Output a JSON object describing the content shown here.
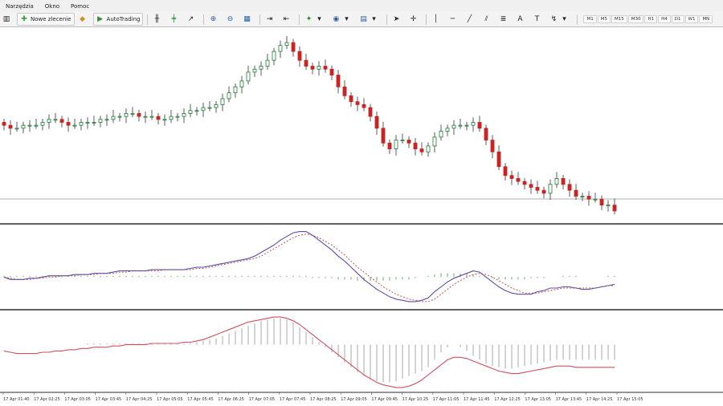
{
  "menu": {
    "items": [
      "Narzędzia",
      "Okno",
      "Pomoc"
    ]
  },
  "toolbar": {
    "new_order_label": "Nowe zlecenie",
    "autotrading_label": "AutoTrading",
    "timeframes": [
      "M1",
      "M5",
      "M15",
      "M30",
      "H1",
      "H4",
      "D1",
      "W1",
      "MN"
    ],
    "icons": [
      "bar-chart-icon",
      "candlestick-icon",
      "line-chart-icon",
      "zoom-in-icon",
      "zoom-out-icon",
      "tile-windows-icon",
      "autoscroll-icon",
      "chart-shift-icon",
      "indicators-icon",
      "periods-icon",
      "templates-icon",
      "cursor-icon",
      "crosshair-icon",
      "vertical-line-icon",
      "horizontal-line-icon",
      "trendline-icon",
      "channel-icon",
      "fibonacci-icon",
      "text-icon",
      "label-icon",
      "arrows-icon"
    ]
  },
  "chart_data": {
    "type": "candlestick",
    "time_labels": [
      "17 Apr 01:40",
      "17 Apr 02:25",
      "17 Apr 03:05",
      "17 Apr 03:45",
      "17 Apr 04:25",
      "17 Apr 05:05",
      "17 Apr 05:45",
      "17 Apr 06:25",
      "17 Apr 07:05",
      "17 Apr 07:45",
      "17 Apr 08:25",
      "17 Apr 09:05",
      "17 Apr 09:45",
      "17 Apr 10:25",
      "17 Apr 11:05",
      "17 Apr 11:45",
      "17 Apr 12:25",
      "17 Apr 13:05",
      "17 Apr 13:45",
      "17 Apr 14:25",
      "17 Apr 15:05"
    ],
    "close": [
      57,
      56,
      56,
      57,
      57,
      57,
      58,
      59,
      59,
      58,
      57,
      57,
      58,
      58,
      58,
      59,
      59,
      60,
      60,
      61,
      61,
      60,
      60,
      60,
      59,
      59,
      60,
      60,
      61,
      62,
      62,
      63,
      63,
      64,
      66,
      68,
      70,
      72,
      75,
      76,
      77,
      79,
      82,
      84,
      85,
      82,
      79,
      77,
      76,
      77,
      76,
      74,
      70,
      67,
      65,
      64,
      63,
      60,
      56,
      51,
      49,
      52,
      52,
      51,
      49,
      48,
      50,
      53,
      55,
      56,
      57,
      57,
      57,
      58,
      56,
      52,
      48,
      43,
      40,
      39,
      38,
      37,
      36,
      35,
      34,
      37,
      39,
      37,
      35,
      33,
      33,
      32,
      32,
      30,
      30,
      28
    ],
    "bull_color": "#1e7a36",
    "bear_color": "#cc2222",
    "macd_line": [
      0,
      -2,
      -2,
      -2,
      -1,
      -1,
      0,
      1,
      1,
      1,
      1,
      2,
      2,
      2,
      3,
      3,
      3,
      4,
      5,
      5,
      5,
      5,
      5,
      6,
      6,
      6,
      6,
      6,
      6,
      7,
      8,
      8,
      9,
      10,
      11,
      12,
      13,
      14,
      15,
      17,
      20,
      23,
      26,
      30,
      33,
      36,
      37,
      37,
      34,
      30,
      26,
      22,
      17,
      13,
      8,
      3,
      -2,
      -6,
      -10,
      -13,
      -16,
      -18,
      -19,
      -20,
      -20,
      -19,
      -17,
      -12,
      -8,
      -4,
      -1,
      1,
      3,
      5,
      4,
      0,
      -4,
      -8,
      -11,
      -13,
      -14,
      -14,
      -14,
      -12,
      -11,
      -9,
      -9,
      -8,
      -8,
      -9,
      -10,
      -10,
      -9,
      -8,
      -7,
      -6
    ],
    "signal_line": [
      0,
      -1,
      -2,
      -2,
      -2,
      -1,
      -1,
      0,
      0,
      1,
      1,
      1,
      2,
      2,
      2,
      3,
      3,
      3,
      4,
      4,
      5,
      5,
      5,
      5,
      5,
      6,
      6,
      6,
      6,
      6,
      7,
      7,
      8,
      9,
      10,
      11,
      12,
      13,
      14,
      15,
      17,
      20,
      23,
      26,
      29,
      32,
      34,
      35,
      34,
      32,
      29,
      26,
      22,
      18,
      13,
      8,
      4,
      0,
      -4,
      -8,
      -11,
      -14,
      -16,
      -18,
      -19,
      -20,
      -20,
      -18,
      -14,
      -10,
      -6,
      -3,
      0,
      2,
      3,
      2,
      0,
      -3,
      -6,
      -9,
      -11,
      -13,
      -13,
      -13,
      -12,
      -11,
      -10,
      -9,
      -9,
      -9,
      -9,
      -9,
      -9,
      -8,
      -7,
      -7
    ],
    "macd_hist": [
      1,
      1,
      1,
      1,
      1,
      1,
      1,
      1,
      1,
      1,
      1,
      1,
      1,
      1,
      1,
      1,
      1,
      1,
      1,
      1,
      1,
      1,
      1,
      1,
      1,
      1,
      1,
      1,
      1,
      1,
      1,
      1,
      1,
      1,
      1,
      1,
      1,
      1,
      1,
      1,
      1,
      1,
      1,
      1,
      1,
      1,
      1,
      1,
      -1,
      -1,
      -1,
      -1,
      -2,
      -2,
      -2,
      -3,
      -3,
      -3,
      -3,
      -3,
      -3,
      -2,
      -2,
      -2,
      -1,
      0,
      1,
      2,
      3,
      3,
      3,
      3,
      3,
      2,
      1,
      0,
      -1,
      -2,
      -2,
      -2,
      -2,
      -2,
      -1,
      -1,
      -1,
      0,
      0,
      1,
      1,
      1,
      0,
      0,
      0,
      0,
      1,
      1
    ],
    "osc_hist": [
      0,
      0,
      0,
      0,
      0,
      0,
      0,
      0,
      0,
      0,
      0,
      0,
      0,
      1,
      1,
      1,
      1,
      1,
      1,
      1,
      1,
      1,
      1,
      1,
      1,
      1,
      1,
      1,
      1,
      1,
      2,
      3,
      4,
      5,
      7,
      9,
      11,
      13,
      15,
      17,
      19,
      20,
      21,
      21,
      20,
      18,
      14,
      10,
      6,
      2,
      -2,
      -6,
      -10,
      -14,
      -18,
      -22,
      -25,
      -27,
      -29,
      -30,
      -30,
      -29,
      -27,
      -25,
      -23,
      -21,
      -18,
      -12,
      -6,
      -2,
      0,
      -2,
      -5,
      -9,
      -12,
      -15,
      -17,
      -18,
      -19,
      -19,
      -18,
      -17,
      -16,
      -15,
      -14,
      -13,
      -12,
      -12,
      -12,
      -12,
      -12,
      -12,
      -12,
      -12,
      -12,
      -12
    ],
    "osc_line": [
      -5,
      -6,
      -7,
      -7,
      -7,
      -7,
      -6,
      -6,
      -5,
      -5,
      -4,
      -4,
      -3,
      -3,
      -2,
      -2,
      -2,
      -1,
      -1,
      0,
      0,
      0,
      0,
      1,
      1,
      1,
      1,
      1,
      2,
      2,
      3,
      4,
      6,
      8,
      10,
      12,
      14,
      16,
      18,
      19,
      20,
      21,
      22,
      22,
      21,
      19,
      16,
      12,
      8,
      4,
      0,
      -4,
      -8,
      -12,
      -16,
      -20,
      -24,
      -27,
      -30,
      -32,
      -33,
      -34,
      -34,
      -33,
      -31,
      -28,
      -24,
      -20,
      -16,
      -12,
      -10,
      -10,
      -11,
      -13,
      -15,
      -17,
      -19,
      -21,
      -22,
      -23,
      -23,
      -22,
      -21,
      -20,
      -19,
      -18,
      -17,
      -17,
      -17,
      -18,
      -18,
      -18,
      -18,
      -18,
      -18,
      -18
    ],
    "macd_color": "#5a4fa8",
    "signal_color": "#d05050",
    "hist_color": "#6aa86a",
    "osc_color": "#d05060",
    "osc_bar_color": "#b8b8b8"
  }
}
